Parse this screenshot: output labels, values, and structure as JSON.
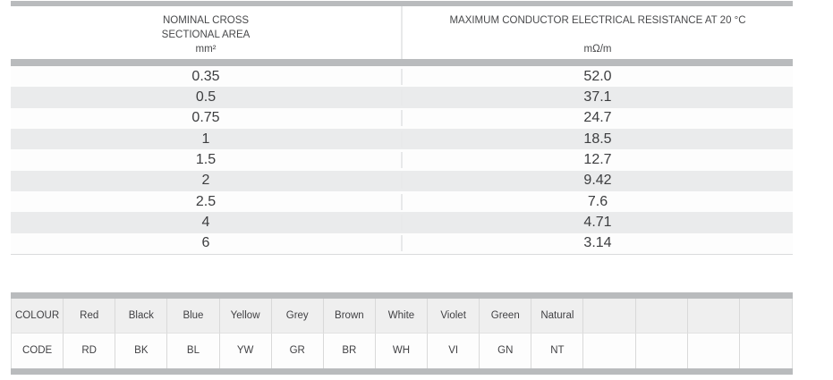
{
  "colors": {
    "bar": "#b9bbbd",
    "row_stripe": "#eaebec",
    "row_white": "#fdfdfd",
    "colour_header_row_bg": "#efefef",
    "cell_border": "#d9d9d9",
    "column_divider": "#e8e9ea",
    "value_text": "#3c3d3f",
    "header_text": "#48494b"
  },
  "resistance_table": {
    "area_header": {
      "title": "NOMINAL CROSS SECTIONAL AREA",
      "unit": "mm²"
    },
    "resistance_header": {
      "title": "MAXIMUM CONDUCTOR ELECTRICAL RESISTANCE AT 20 °C",
      "unit": "mΩ/m"
    },
    "rows": [
      {
        "area": "0.35",
        "resistance": "52.0"
      },
      {
        "area": "0.5",
        "resistance": "37.1"
      },
      {
        "area": "0.75",
        "resistance": "24.7"
      },
      {
        "area": "1",
        "resistance": "18.5"
      },
      {
        "area": "1.5",
        "resistance": "12.7"
      },
      {
        "area": "2",
        "resistance": "9.42"
      },
      {
        "area": "2.5",
        "resistance": "7.6"
      },
      {
        "area": "4",
        "resistance": "4.71"
      },
      {
        "area": "6",
        "resistance": "3.14"
      }
    ]
  },
  "colour_code_table": {
    "colour_row_label": "COLOUR",
    "code_row_label": "CODE",
    "entries": [
      {
        "colour": "Red",
        "code": "RD"
      },
      {
        "colour": "Black",
        "code": "BK"
      },
      {
        "colour": "Blue",
        "code": "BL"
      },
      {
        "colour": "Yellow",
        "code": "YW"
      },
      {
        "colour": "Grey",
        "code": "GR"
      },
      {
        "colour": "Brown",
        "code": "BR"
      },
      {
        "colour": "White",
        "code": "WH"
      },
      {
        "colour": "Violet",
        "code": "VI"
      },
      {
        "colour": "Green",
        "code": "GN"
      },
      {
        "colour": "Natural",
        "code": "NT"
      },
      {
        "colour": "",
        "code": ""
      },
      {
        "colour": "",
        "code": ""
      },
      {
        "colour": "",
        "code": ""
      },
      {
        "colour": "",
        "code": ""
      }
    ]
  }
}
